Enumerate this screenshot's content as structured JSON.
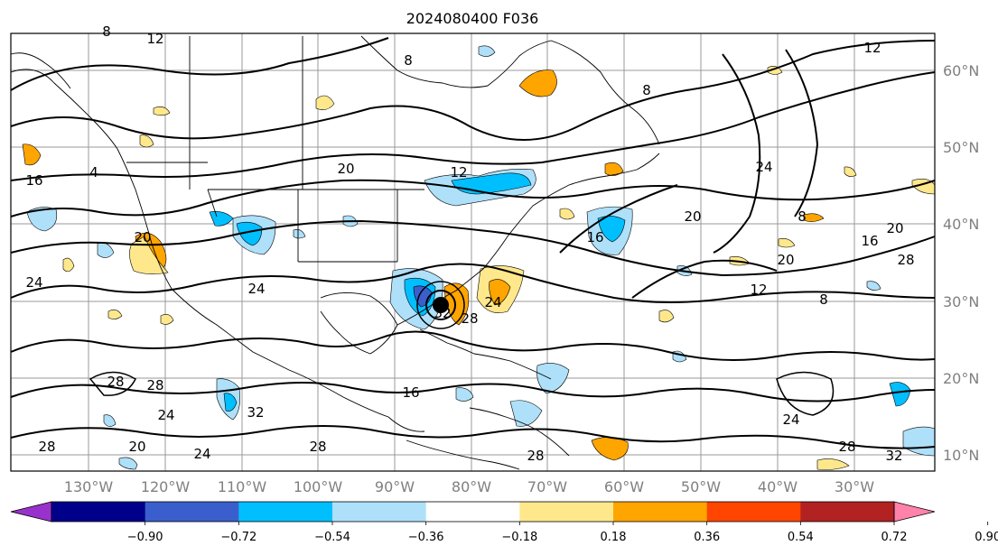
{
  "title": "2024080400 F036",
  "map": {
    "lon_ticks": [
      "130°W",
      "120°W",
      "110°W",
      "100°W",
      "90°W",
      "80°W",
      "70°W",
      "60°W",
      "50°W",
      "40°W",
      "30°W"
    ],
    "lat_ticks": [
      "60°N",
      "50°N",
      "40°N",
      "30°N",
      "20°N",
      "10°N"
    ],
    "contour_labels": [
      "12",
      "8",
      "4",
      "16",
      "20",
      "20",
      "12",
      "24",
      "20",
      "16",
      "8",
      "16",
      "20",
      "20",
      "12",
      "8",
      "8",
      "12",
      "8",
      "24",
      "28",
      "28",
      "24",
      "28",
      "32",
      "32",
      "28",
      "20",
      "28",
      "24",
      "32",
      "24",
      "28",
      "16",
      "28",
      "24",
      "28",
      "24"
    ]
  },
  "colorbar": {
    "ticks": [
      "−0.90",
      "−0.72",
      "−0.54",
      "−0.36",
      "−0.18",
      "0.18",
      "0.36",
      "0.54",
      "0.72",
      "0.90"
    ],
    "colors": [
      "#9932cc",
      "#00008b",
      "#3a5fcd",
      "#00bfff",
      "#afe0fa",
      "#ffffff",
      "#ffe88c",
      "#ffa500",
      "#ff4500",
      "#b22222",
      "#ff82ab"
    ]
  }
}
